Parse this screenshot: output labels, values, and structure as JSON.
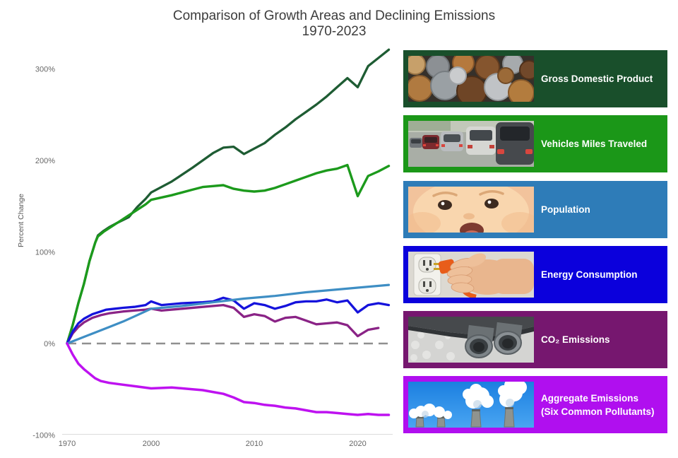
{
  "title": {
    "line1": "Comparison of Growth Areas and Declining Emissions",
    "line2": "1970-2023"
  },
  "chart_data": {
    "type": "line",
    "title": "Comparison of Growth Areas and Declining Emissions 1970-2023",
    "xlabel": "",
    "ylabel": "Percent Change",
    "xlim": [
      1970,
      2023
    ],
    "ylim": [
      -100,
      325
    ],
    "grid": false,
    "zero_baseline_dashed": true,
    "legend_position": "right",
    "x_ticks": [
      {
        "value": 1970,
        "label": "1970"
      },
      {
        "value": 2000,
        "label": "2000"
      },
      {
        "value": 2010,
        "label": "2010"
      },
      {
        "value": 2020,
        "label": "2020"
      }
    ],
    "y_ticks": [
      {
        "value": 300,
        "label": "300%"
      },
      {
        "value": 200,
        "label": "200%"
      },
      {
        "value": 100,
        "label": "100%"
      },
      {
        "value": 0,
        "label": "0%"
      },
      {
        "value": -100,
        "label": "-100%"
      }
    ],
    "draw_order": [
      0,
      1,
      4,
      3,
      2,
      5
    ],
    "series": [
      {
        "id": "gdp",
        "name": "Gross Domestic Product",
        "color": "#1E5C33",
        "width": 3.3,
        "points": [
          [
            1970,
            0
          ],
          [
            1972,
            20
          ],
          [
            1974,
            44
          ],
          [
            1976,
            65
          ],
          [
            1978,
            90
          ],
          [
            1980,
            110
          ],
          [
            1981,
            118
          ],
          [
            1983,
            123
          ],
          [
            1985,
            127
          ],
          [
            1988,
            132
          ],
          [
            1992,
            138
          ],
          [
            1995,
            149
          ],
          [
            1998,
            158
          ],
          [
            2000,
            165
          ],
          [
            2002,
            177
          ],
          [
            2004,
            192
          ],
          [
            2006,
            208
          ],
          [
            2007,
            214
          ],
          [
            2008,
            215
          ],
          [
            2009,
            207
          ],
          [
            2010,
            213
          ],
          [
            2011,
            219
          ],
          [
            2012,
            228
          ],
          [
            2013,
            236
          ],
          [
            2014,
            245
          ],
          [
            2015,
            253
          ],
          [
            2016,
            261
          ],
          [
            2017,
            270
          ],
          [
            2018,
            280
          ],
          [
            2019,
            290
          ],
          [
            2020,
            280
          ],
          [
            2021,
            303
          ],
          [
            2022,
            312
          ],
          [
            2023,
            321
          ]
        ]
      },
      {
        "id": "vmt",
        "name": "Vehicles Miles Traveled",
        "color": "#1C9A1C",
        "width": 3.4,
        "points": [
          [
            1970,
            0
          ],
          [
            1972,
            20
          ],
          [
            1974,
            44
          ],
          [
            1976,
            65
          ],
          [
            1978,
            90
          ],
          [
            1980,
            110
          ],
          [
            1981,
            117
          ],
          [
            1983,
            122
          ],
          [
            1986,
            128
          ],
          [
            1989,
            134
          ],
          [
            1992,
            140
          ],
          [
            1995,
            146
          ],
          [
            1998,
            152
          ],
          [
            2000,
            157
          ],
          [
            2002,
            162
          ],
          [
            2004,
            168
          ],
          [
            2005,
            171
          ],
          [
            2006,
            172
          ],
          [
            2007,
            173
          ],
          [
            2008,
            169
          ],
          [
            2009,
            167
          ],
          [
            2010,
            166
          ],
          [
            2011,
            167
          ],
          [
            2012,
            170
          ],
          [
            2013,
            174
          ],
          [
            2014,
            178
          ],
          [
            2015,
            182
          ],
          [
            2016,
            186
          ],
          [
            2017,
            189
          ],
          [
            2018,
            191
          ],
          [
            2019,
            195
          ],
          [
            2020,
            161
          ],
          [
            2021,
            183
          ],
          [
            2022,
            188
          ],
          [
            2023,
            194
          ]
        ]
      },
      {
        "id": "population",
        "name": "Population",
        "color": "#3E8EC4",
        "width": 3.2,
        "points": [
          [
            1970,
            0
          ],
          [
            1975,
            6
          ],
          [
            1980,
            12
          ],
          [
            1985,
            18
          ],
          [
            1990,
            24
          ],
          [
            1995,
            31
          ],
          [
            2000,
            38
          ],
          [
            2003,
            41
          ],
          [
            2006,
            45
          ],
          [
            2009,
            49
          ],
          [
            2012,
            52
          ],
          [
            2015,
            56
          ],
          [
            2018,
            59
          ],
          [
            2020,
            61
          ],
          [
            2023,
            64
          ]
        ]
      },
      {
        "id": "energy",
        "name": "Energy Consumption",
        "color": "#1512DC",
        "width": 3.3,
        "points": [
          [
            1970,
            0
          ],
          [
            1972,
            13
          ],
          [
            1974,
            22
          ],
          [
            1976,
            27
          ],
          [
            1979,
            32
          ],
          [
            1982,
            35
          ],
          [
            1984,
            37
          ],
          [
            1987,
            38
          ],
          [
            1990,
            39
          ],
          [
            1994,
            40
          ],
          [
            1998,
            42
          ],
          [
            2000,
            46
          ],
          [
            2001,
            42
          ],
          [
            2003,
            44
          ],
          [
            2005,
            45
          ],
          [
            2006,
            46
          ],
          [
            2007,
            50
          ],
          [
            2008,
            47
          ],
          [
            2009,
            38
          ],
          [
            2010,
            44
          ],
          [
            2011,
            42
          ],
          [
            2012,
            38
          ],
          [
            2013,
            41
          ],
          [
            2014,
            45
          ],
          [
            2015,
            46
          ],
          [
            2016,
            46
          ],
          [
            2017,
            48
          ],
          [
            2018,
            45
          ],
          [
            2019,
            47
          ],
          [
            2020,
            34
          ],
          [
            2021,
            42
          ],
          [
            2022,
            44
          ],
          [
            2023,
            42
          ]
        ]
      },
      {
        "id": "co2",
        "name": "CO₂ Emissions",
        "color": "#8A2386",
        "width": 3.3,
        "points": [
          [
            1970,
            0
          ],
          [
            1972,
            11
          ],
          [
            1974,
            18
          ],
          [
            1976,
            23
          ],
          [
            1979,
            28
          ],
          [
            1982,
            31
          ],
          [
            1985,
            33
          ],
          [
            1990,
            35
          ],
          [
            1994,
            36
          ],
          [
            1998,
            37
          ],
          [
            2000,
            38
          ],
          [
            2001,
            36
          ],
          [
            2003,
            38
          ],
          [
            2005,
            40
          ],
          [
            2007,
            42
          ],
          [
            2008,
            39
          ],
          [
            2009,
            29
          ],
          [
            2010,
            32
          ],
          [
            2011,
            30
          ],
          [
            2012,
            24
          ],
          [
            2013,
            28
          ],
          [
            2014,
            29
          ],
          [
            2015,
            25
          ],
          [
            2016,
            21
          ],
          [
            2017,
            22
          ],
          [
            2018,
            23
          ],
          [
            2019,
            20
          ],
          [
            2020,
            8
          ],
          [
            2021,
            15
          ],
          [
            2022,
            17
          ]
        ]
      },
      {
        "id": "aggregate",
        "name": "Aggregate Emissions (Six Common Pollutants)",
        "color": "#BE12F0",
        "width": 3.5,
        "points": [
          [
            1970,
            0
          ],
          [
            1972,
            -12
          ],
          [
            1974,
            -22
          ],
          [
            1976,
            -28
          ],
          [
            1978,
            -33
          ],
          [
            1980,
            -38
          ],
          [
            1982,
            -41
          ],
          [
            1985,
            -43
          ],
          [
            1990,
            -45
          ],
          [
            1995,
            -47
          ],
          [
            2000,
            -49
          ],
          [
            2002,
            -48
          ],
          [
            2004,
            -50
          ],
          [
            2005,
            -51
          ],
          [
            2006,
            -53
          ],
          [
            2007,
            -55
          ],
          [
            2008,
            -59
          ],
          [
            2009,
            -64
          ],
          [
            2010,
            -65
          ],
          [
            2011,
            -67
          ],
          [
            2012,
            -68
          ],
          [
            2013,
            -70
          ],
          [
            2014,
            -71
          ],
          [
            2015,
            -73
          ],
          [
            2016,
            -75
          ],
          [
            2017,
            -75
          ],
          [
            2018,
            -76
          ],
          [
            2019,
            -77
          ],
          [
            2020,
            -78
          ],
          [
            2021,
            -77
          ],
          [
            2022,
            -78
          ],
          [
            2023,
            -78
          ]
        ]
      }
    ]
  },
  "legend": {
    "items": [
      {
        "label": "Gross Domestic Product",
        "color": "#194F2B",
        "photo": "coins"
      },
      {
        "label": "Vehicles Miles Traveled",
        "color": "#1B9718",
        "photo": "traffic-jam"
      },
      {
        "label": "Population",
        "color": "#2E7CB8",
        "photo": "baby-face"
      },
      {
        "label": "Energy Consumption",
        "color": "#0B00DC",
        "photo": "power-plug"
      },
      {
        "label": "CO₂ Emissions",
        "color": "#76176F",
        "photo": "car-exhaust"
      },
      {
        "label_line1": "Aggregate Emissions",
        "label_line2": "(Six Common Pollutants)",
        "color": "#B00FEF",
        "photo": "smokestacks"
      }
    ]
  }
}
